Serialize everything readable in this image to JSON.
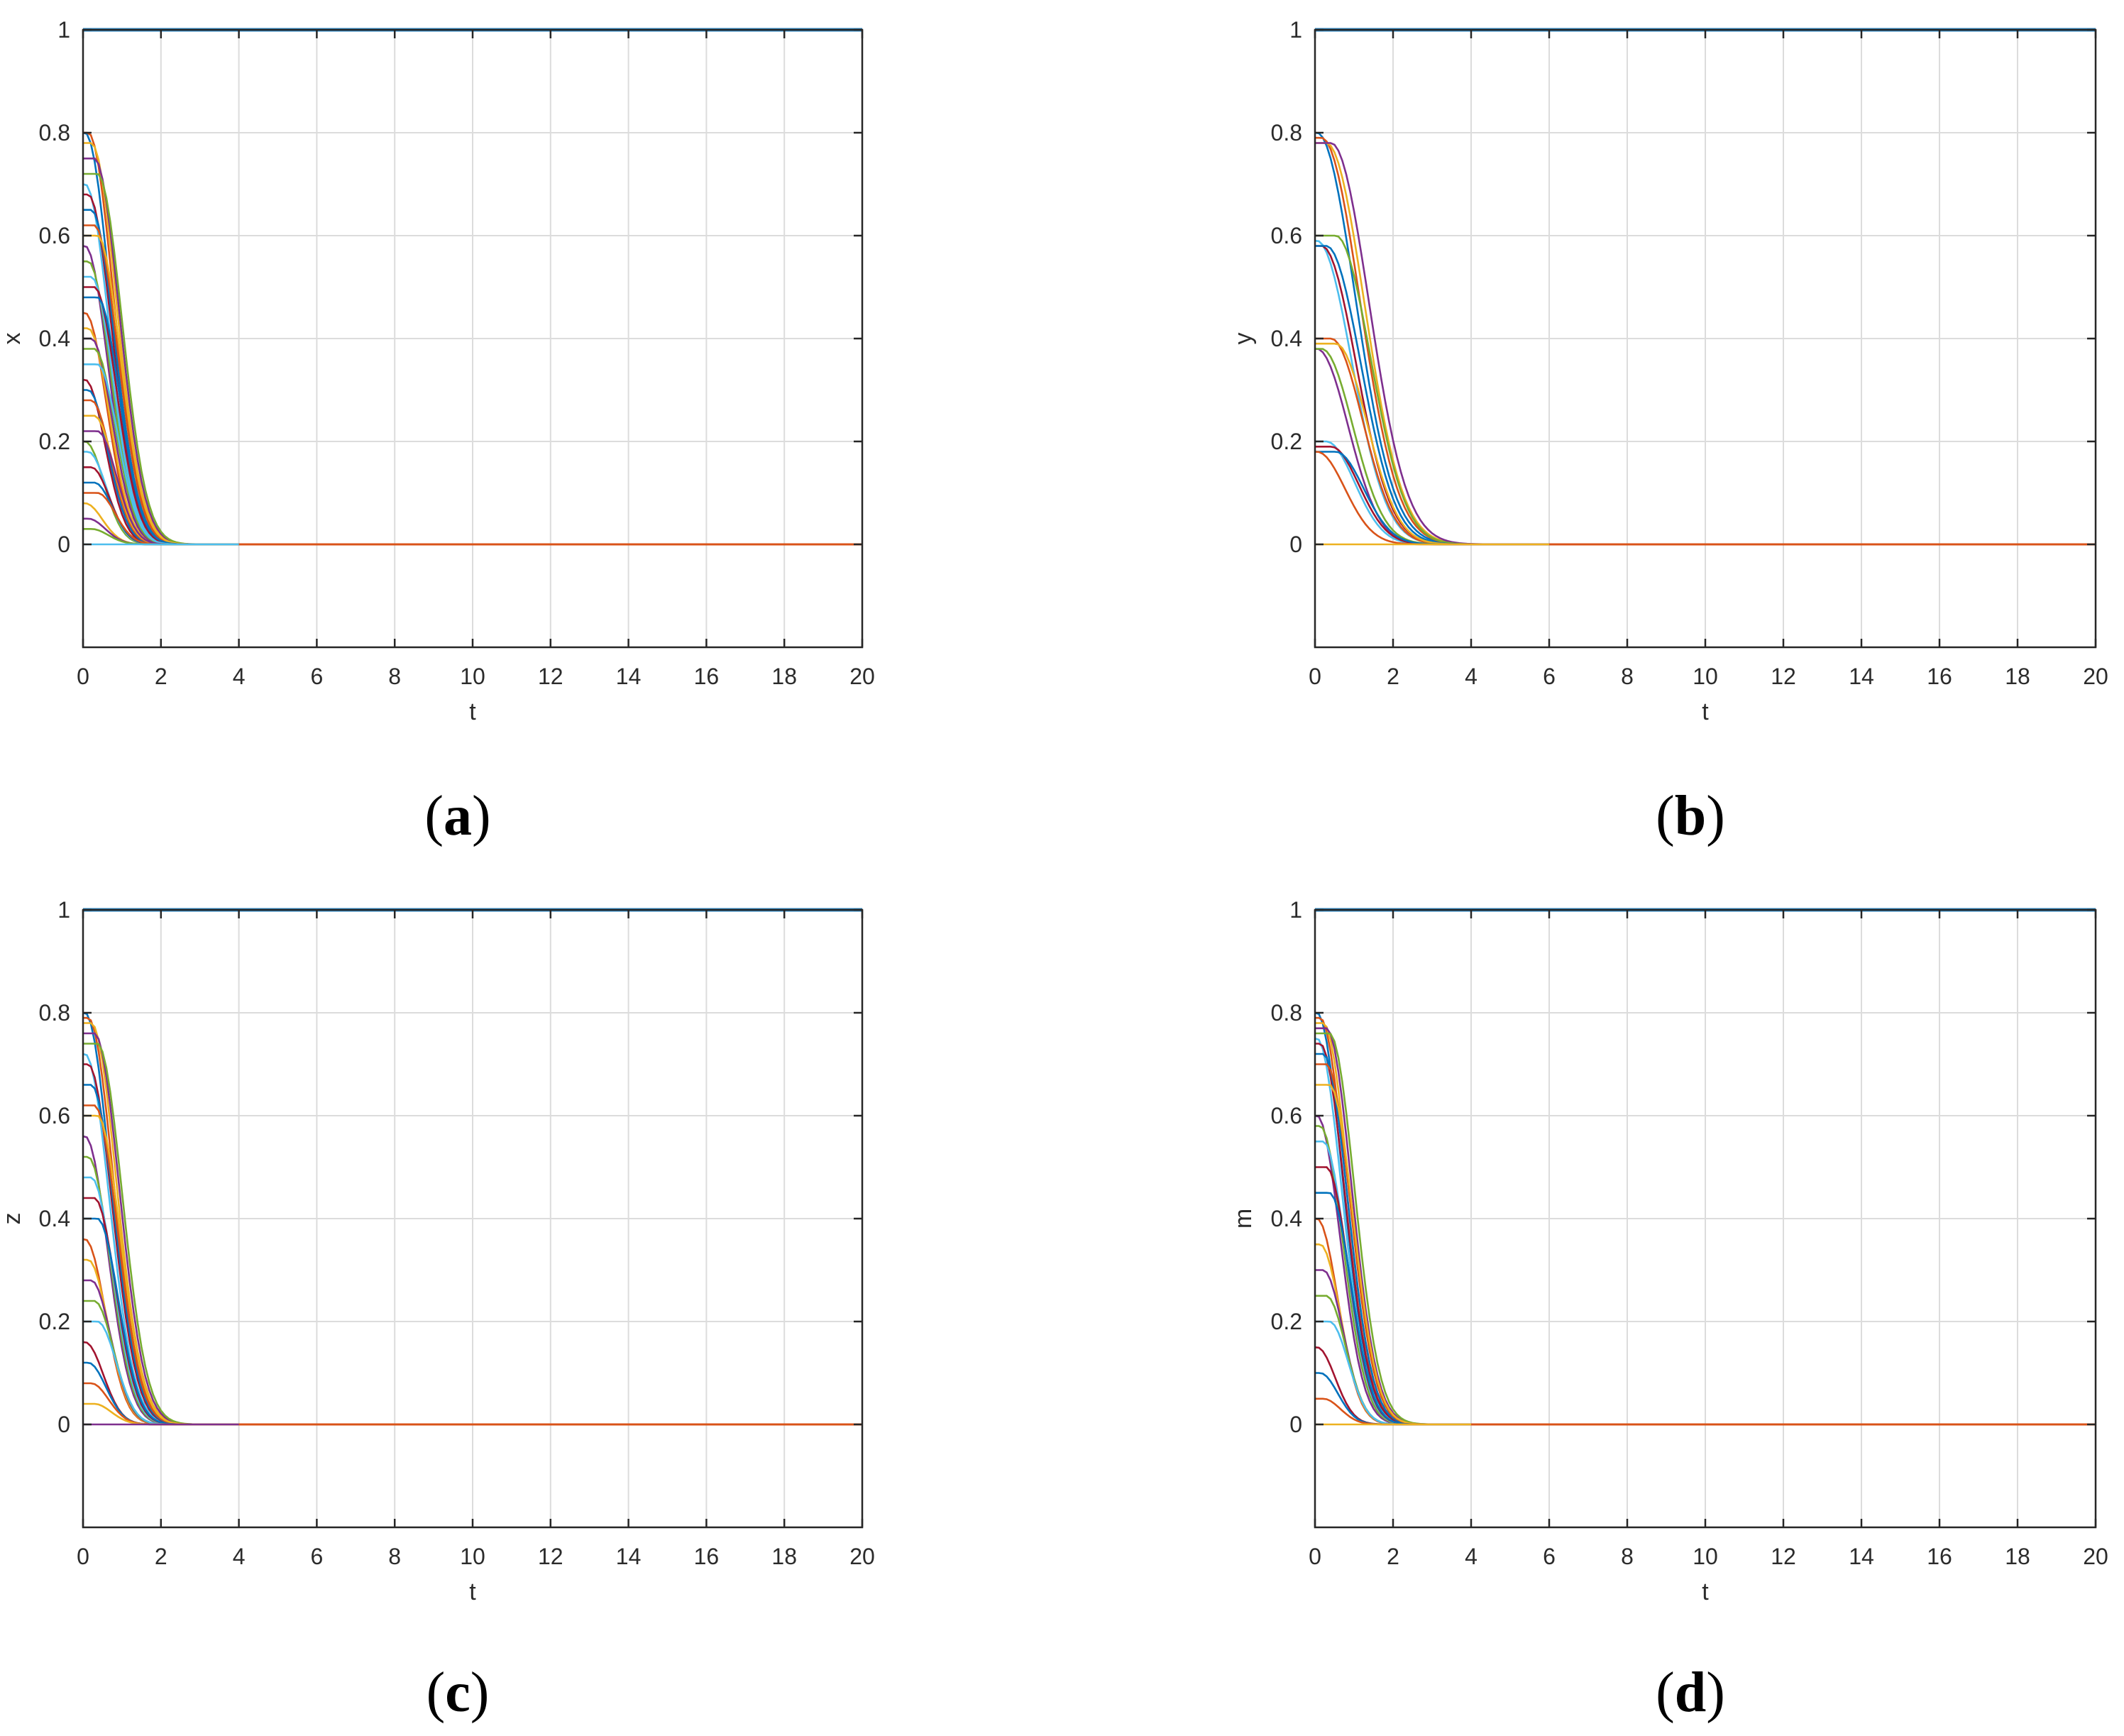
{
  "chart_data": [
    {
      "type": "line",
      "panel": "a",
      "caption_letter": "a",
      "xlabel": "t",
      "ylabel": "x",
      "xlim": [
        0,
        20
      ],
      "ylim": [
        -0.2,
        1
      ],
      "xticks": [
        "0",
        "2",
        "4",
        "6",
        "8",
        "10",
        "12",
        "14",
        "16",
        "18",
        "20"
      ],
      "yticks": [
        "0",
        "0.2",
        "0.4",
        "0.6",
        "0.8",
        "1"
      ],
      "grid": true,
      "legend": "none",
      "series_description": "Many trajectories starting between 0 and 0.8 at t=0 decaying to 0 by t≈4; one trajectory constant at 1",
      "initial_values": [
        0.8,
        0.8,
        0.78,
        0.75,
        0.72,
        0.7,
        0.68,
        0.65,
        0.62,
        0.6,
        0.58,
        0.55,
        0.52,
        0.5,
        0.48,
        0.45,
        0.42,
        0.4,
        0.38,
        0.35,
        0.32,
        0.3,
        0.28,
        0.25,
        0.22,
        0.2,
        0.18,
        0.15,
        0.12,
        0.1,
        0.08,
        0.05,
        0.03,
        0.0
      ],
      "decay_end_t": 4,
      "steady_values": [
        0,
        1
      ]
    },
    {
      "type": "line",
      "panel": "b",
      "caption_letter": "b",
      "xlabel": "t",
      "ylabel": "y",
      "xlim": [
        0,
        20
      ],
      "ylim": [
        -0.2,
        1
      ],
      "xticks": [
        "0",
        "2",
        "4",
        "6",
        "8",
        "10",
        "12",
        "14",
        "16",
        "18",
        "20"
      ],
      "yticks": [
        "0",
        "0.2",
        "0.4",
        "0.6",
        "0.8",
        "1"
      ],
      "grid": true,
      "legend": "none",
      "series_description": "Trajectories starting near 0.2, 0.4, 0.6, 0.8 at t=0 decaying to 0 by t≈6; one trajectory constant at 1",
      "initial_values": [
        0.8,
        0.79,
        0.78,
        0.78,
        0.6,
        0.59,
        0.58,
        0.58,
        0.4,
        0.39,
        0.38,
        0.38,
        0.2,
        0.19,
        0.18,
        0.18,
        0.0
      ],
      "decay_end_t": 6,
      "steady_values": [
        0,
        1
      ]
    },
    {
      "type": "line",
      "panel": "c",
      "caption_letter": "c",
      "xlabel": "t",
      "ylabel": "z",
      "xlim": [
        0,
        20
      ],
      "ylim": [
        -0.2,
        1
      ],
      "xticks": [
        "0",
        "2",
        "4",
        "6",
        "8",
        "10",
        "12",
        "14",
        "16",
        "18",
        "20"
      ],
      "yticks": [
        "0",
        "0.2",
        "0.4",
        "0.6",
        "0.8",
        "1"
      ],
      "grid": true,
      "legend": "none",
      "series_description": "Many trajectories starting between 0 and 0.8 at t=0 decaying to 0 by t≈4; one trajectory constant at 1",
      "initial_values": [
        0.8,
        0.79,
        0.78,
        0.76,
        0.74,
        0.72,
        0.7,
        0.66,
        0.62,
        0.6,
        0.56,
        0.52,
        0.48,
        0.44,
        0.4,
        0.36,
        0.32,
        0.28,
        0.24,
        0.2,
        0.16,
        0.12,
        0.08,
        0.04,
        0.0
      ],
      "decay_end_t": 4,
      "steady_values": [
        0,
        1
      ]
    },
    {
      "type": "line",
      "panel": "d",
      "caption_letter": "d",
      "xlabel": "t",
      "ylabel": "m",
      "xlim": [
        0,
        20
      ],
      "ylim": [
        -0.2,
        1
      ],
      "xticks": [
        "0",
        "2",
        "4",
        "6",
        "8",
        "10",
        "12",
        "14",
        "16",
        "18",
        "20"
      ],
      "yticks": [
        "0",
        "0.2",
        "0.4",
        "0.6",
        "0.8",
        "1"
      ],
      "grid": true,
      "legend": "none",
      "series_description": "Many trajectories starting between 0 and 0.8 at t=0 decaying to 0 by t≈4; one trajectory constant at 1",
      "initial_values": [
        0.8,
        0.79,
        0.78,
        0.77,
        0.76,
        0.75,
        0.74,
        0.72,
        0.7,
        0.66,
        0.6,
        0.58,
        0.55,
        0.5,
        0.45,
        0.4,
        0.35,
        0.3,
        0.25,
        0.2,
        0.15,
        0.1,
        0.05,
        0.0
      ],
      "decay_end_t": 4,
      "steady_values": [
        0,
        1
      ]
    }
  ],
  "colors": {
    "palette": [
      "#0072BD",
      "#D95319",
      "#EDB120",
      "#7E2F8E",
      "#77AC30",
      "#4DBEEE",
      "#A2142F"
    ],
    "axis": "#262626",
    "grid": "#dcdcdc",
    "constant_line": "#2E86C1"
  }
}
